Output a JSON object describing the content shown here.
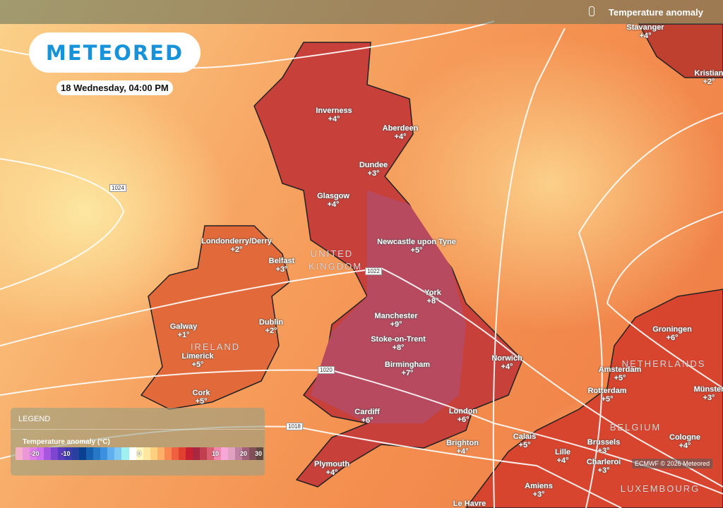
{
  "header": {
    "title": "Temperature anomaly",
    "icon": "thermometer-icon"
  },
  "logo": {
    "text": "METEORED",
    "color": "#1793d9"
  },
  "date_label": "18 Wednesday, 04:00 PM",
  "cities": [
    {
      "name": "Stavanger",
      "value": "+4°"
    },
    {
      "name": "Kristian",
      "value": "+2°"
    },
    {
      "name": "Inverness",
      "value": "+4°"
    },
    {
      "name": "Aberdeen",
      "value": "+4°"
    },
    {
      "name": "Dundee",
      "value": "+3°"
    },
    {
      "name": "Glasgow",
      "value": "+4°"
    },
    {
      "name": "Londonderry/Derry",
      "value": "+2°"
    },
    {
      "name": "Belfast",
      "value": "+3°"
    },
    {
      "name": "Newcastle upon Tyne",
      "value": "+5°"
    },
    {
      "name": "York",
      "value": "+8°"
    },
    {
      "name": "Manchester",
      "value": "+9°"
    },
    {
      "name": "Galway",
      "value": "+1°"
    },
    {
      "name": "Dublin",
      "value": "+2°"
    },
    {
      "name": "Stoke-on-Trent",
      "value": "+8°"
    },
    {
      "name": "Limerick",
      "value": "+5°"
    },
    {
      "name": "Birmingham",
      "value": "+7°"
    },
    {
      "name": "Norwich",
      "value": "+4°"
    },
    {
      "name": "Amsterdam",
      "value": "+5°"
    },
    {
      "name": "Groningen",
      "value": "+6°"
    },
    {
      "name": "Rotterdam",
      "value": "+5°"
    },
    {
      "name": "Münster",
      "value": "+3°"
    },
    {
      "name": "Cork",
      "value": "+5°"
    },
    {
      "name": "Cardiff",
      "value": "+6°"
    },
    {
      "name": "London",
      "value": "+6°"
    },
    {
      "name": "Calais",
      "value": "+5°"
    },
    {
      "name": "Brighton",
      "value": "+4°"
    },
    {
      "name": "Brussels",
      "value": "+3°"
    },
    {
      "name": "Lille",
      "value": "+4°"
    },
    {
      "name": "Charleroi",
      "value": "+3°"
    },
    {
      "name": "Cologne",
      "value": "+4°"
    },
    {
      "name": "Plymouth",
      "value": "+4°"
    },
    {
      "name": "Amiens",
      "value": "+3°"
    },
    {
      "name": "Le Havre",
      "value": ""
    }
  ],
  "countries": [
    "UNITED",
    "KINGDOM",
    "IRELAND",
    "NETHERLANDS",
    "BELGIUM",
    "LUXEMBOURG"
  ],
  "isobars": [
    "1024",
    "1022",
    "1020",
    "1018"
  ],
  "legend": {
    "title": "LEGEND",
    "subtitle": "Temperature anomaly (°C)",
    "ticks": [
      "-20",
      "-10",
      "0",
      "10",
      "20",
      "30"
    ],
    "colors": [
      "#f4b0c8",
      "#ec98d8",
      "#e080e8",
      "#d070f0",
      "#a855e0",
      "#7d45d0",
      "#5a3cc0",
      "#3c3cb0",
      "#2a40a0",
      "#0a4090",
      "#1660b0",
      "#2878c8",
      "#3c90e0",
      "#60b0f0",
      "#80c8f4",
      "#a0f0f0",
      "#ffffff",
      "#fff8c0",
      "#fee8a0",
      "#fed080",
      "#fcb068",
      "#f88850",
      "#f06040",
      "#e04030",
      "#c82030",
      "#a82840",
      "#c04050",
      "#d86070",
      "#f088b0",
      "#f8a8d8",
      "#e0a0c0",
      "#c080a0",
      "#a06078",
      "#805058",
      "#604840"
    ]
  },
  "credit": "ECMWF © 2026 Meteored"
}
